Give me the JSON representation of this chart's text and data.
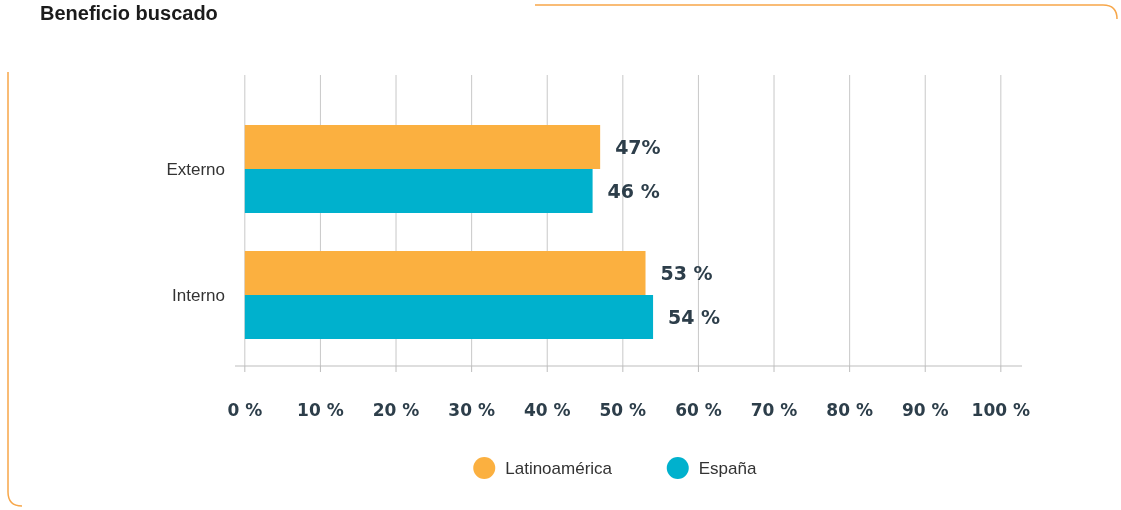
{
  "chart_data": {
    "type": "bar",
    "orientation": "horizontal",
    "title": "Beneficio buscado",
    "categories": [
      "Externo",
      "Interno"
    ],
    "series": [
      {
        "name": "Latinoamérica",
        "color": "#fbb040",
        "values": [
          47,
          53
        ],
        "value_labels": [
          "47%",
          "53 %"
        ]
      },
      {
        "name": "España",
        "color": "#00b1cd",
        "values": [
          46,
          54
        ],
        "value_labels": [
          "46 %",
          "54 %"
        ]
      }
    ],
    "xlim": [
      -1.3,
      102.8
    ],
    "xticks": [
      {
        "value": 0,
        "label": "0 %"
      },
      {
        "value": 10,
        "label": "10 %"
      },
      {
        "value": 20,
        "label": "20 %"
      },
      {
        "value": 30,
        "label": "30 %"
      },
      {
        "value": 40,
        "label": "40 %"
      },
      {
        "value": 50,
        "label": "50 %"
      },
      {
        "value": 60,
        "label": "60 %"
      },
      {
        "value": 70,
        "label": "70 %"
      },
      {
        "value": 80,
        "label": "80 %"
      },
      {
        "value": 90,
        "label": "90 %"
      },
      {
        "value": 100,
        "label": "100 %"
      }
    ],
    "grid": "x",
    "legend": "bottom"
  }
}
